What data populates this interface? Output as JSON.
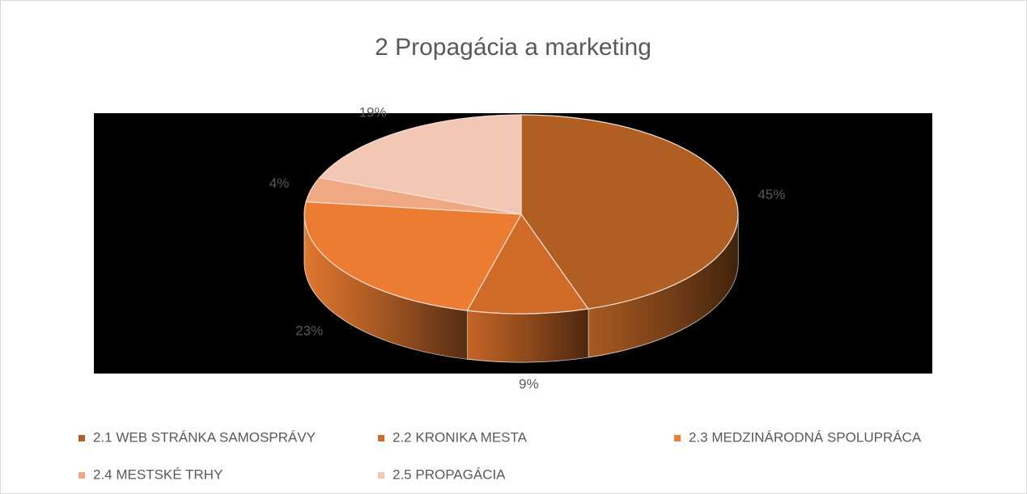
{
  "chart_data": {
    "type": "pie3d",
    "title": "2 Propagácia a marketing",
    "categories": [
      "2.1 WEB STRÁNKA SAMOSPRÁVY",
      "2.2 KRONIKA MESTA",
      "2.3 MEDZINÁRODNÁ SPOLUPRÁCA",
      "2.4 MESTSKÉ TRHY",
      "2.5 PROPAGÁCIA"
    ],
    "values": [
      45,
      9,
      23,
      4,
      19
    ],
    "value_labels": [
      "45%",
      "9%",
      "23%",
      "4%",
      "19%"
    ],
    "colors": [
      "#b05e22",
      "#cf6a28",
      "#eb7c31",
      "#f0a882",
      "#f2c7b5"
    ],
    "legend": "bottom"
  }
}
